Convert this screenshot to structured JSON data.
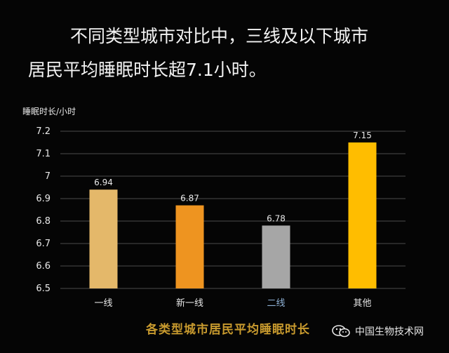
{
  "headline": {
    "line1": "不同类型城市对比中，三线及以下城市",
    "line2": "居民平均睡眠时长超7.1小时。"
  },
  "watermark": {
    "text": "中国生物技术网",
    "icon": "wechat-icon"
  },
  "chart_data": {
    "type": "bar",
    "title": "各类型城市居民平均睡眠时长",
    "ylabel": "睡眠时长/小时",
    "xlabel": "",
    "categories": [
      "一线",
      "新一线",
      "二线",
      "其他"
    ],
    "values": [
      6.94,
      6.87,
      6.78,
      7.15
    ],
    "value_labels": [
      "6.94",
      "6.87",
      "6.78",
      "7.15"
    ],
    "ylim": [
      6.5,
      7.2
    ],
    "yticks": [
      "6.5",
      "6.6",
      "6.7",
      "6.8",
      "6.9",
      "7",
      "7.1",
      "7.2"
    ],
    "grid": true,
    "colors": {
      "bars": [
        "#e4b86a",
        "#ee9420",
        "#a6a6a6",
        "#ffbd00"
      ],
      "category_labels": [
        "#e6e6e6",
        "#e6e6e6",
        "#8fb2d6",
        "#e6e6e6"
      ],
      "grid": "#4a4a4a",
      "text": "#e8e8e8"
    }
  }
}
